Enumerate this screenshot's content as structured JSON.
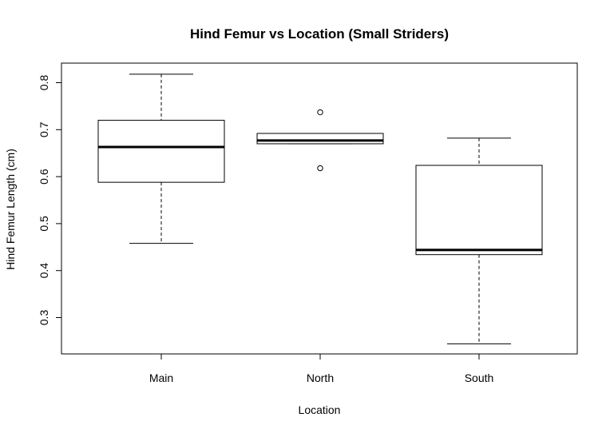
{
  "chart_data": {
    "type": "boxplot",
    "title": "Hind Femur vs Location (Small Striders)",
    "xlabel": "Location",
    "ylabel": "Hind Femur Length (cm)",
    "ylim": [
      0.22,
      0.84
    ],
    "yticks": [
      0.3,
      0.4,
      0.5,
      0.6,
      0.7,
      0.8
    ],
    "ytick_labels": [
      "0.3",
      "0.4",
      "0.5",
      "0.6",
      "0.7",
      "0.8"
    ],
    "grid": false,
    "legend": "none",
    "categories": [
      "Main",
      "North",
      "South"
    ],
    "boxes": [
      {
        "category": "Main",
        "whisker_low": 0.458,
        "q1": 0.588,
        "median": 0.663,
        "q3": 0.72,
        "whisker_high": 0.818,
        "outliers": []
      },
      {
        "category": "North",
        "whisker_low": 0.67,
        "q1": 0.67,
        "median": 0.677,
        "q3": 0.692,
        "whisker_high": 0.692,
        "outliers": [
          0.737,
          0.618
        ]
      },
      {
        "category": "South",
        "whisker_low": 0.244,
        "q1": 0.434,
        "median": 0.444,
        "q3": 0.624,
        "whisker_high": 0.682,
        "outliers": []
      }
    ]
  }
}
